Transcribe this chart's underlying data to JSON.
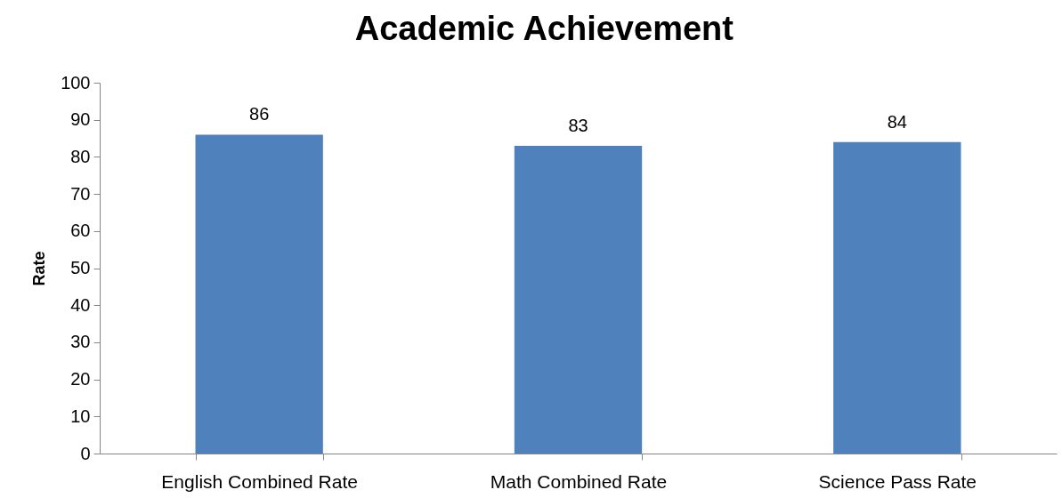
{
  "chart_data": {
    "type": "bar",
    "title": "Academic Achievement",
    "ylabel": "Rate",
    "categories": [
      "English Combined Rate",
      "Math Combined Rate",
      "Science Pass Rate"
    ],
    "values": [
      86,
      83,
      84
    ],
    "color": "#4f81bd",
    "ylim": [
      0,
      100
    ],
    "yticks": [
      0,
      10,
      20,
      30,
      40,
      50,
      60,
      70,
      80,
      90,
      100
    ],
    "data_labels": true
  }
}
